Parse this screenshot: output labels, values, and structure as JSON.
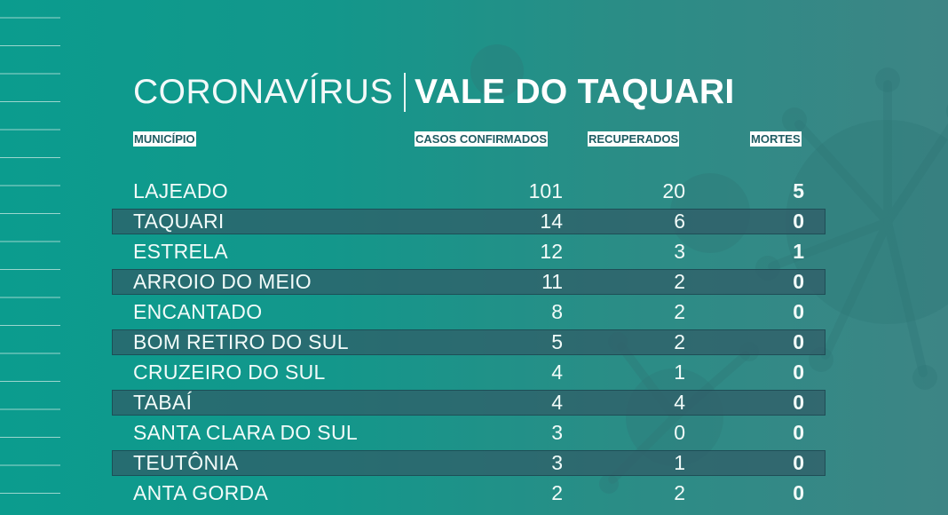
{
  "title": {
    "part1": "CORONAVÍRUS",
    "part2": "VALE DO TAQUARI"
  },
  "headers": {
    "municipio": "MUNICÍPIO",
    "casos": "CASOS CONFIRMADOS",
    "recuperados": "RECUPERADOS",
    "mortes": "MORTES"
  },
  "rows": [
    {
      "municipio": "LAJEADO",
      "casos": "101",
      "recuperados": "20",
      "mortes": "5"
    },
    {
      "municipio": "TAQUARI",
      "casos": "14",
      "recuperados": "6",
      "mortes": "0"
    },
    {
      "municipio": "ESTRELA",
      "casos": "12",
      "recuperados": "3",
      "mortes": "1"
    },
    {
      "municipio": "ARROIO DO MEIO",
      "casos": "11",
      "recuperados": "2",
      "mortes": "0"
    },
    {
      "municipio": "ENCANTADO",
      "casos": "8",
      "recuperados": "2",
      "mortes": "0"
    },
    {
      "municipio": "BOM RETIRO DO SUL",
      "casos": "5",
      "recuperados": "2",
      "mortes": "0"
    },
    {
      "municipio": "CRUZEIRO DO SUL",
      "casos": "4",
      "recuperados": "1",
      "mortes": "0"
    },
    {
      "municipio": "TABAÍ",
      "casos": "4",
      "recuperados": "4",
      "mortes": "0"
    },
    {
      "municipio": "SANTA CLARA DO SUL",
      "casos": "3",
      "recuperados": "0",
      "mortes": "0"
    },
    {
      "municipio": "TEUTÔNIA",
      "casos": "3",
      "recuperados": "1",
      "mortes": "0"
    },
    {
      "municipio": "ANTA GORDA",
      "casos": "2",
      "recuperados": "2",
      "mortes": "0"
    }
  ],
  "colors": {
    "background_left": "#0b9c8e",
    "background_right": "#3d8585",
    "band": "#305c66",
    "header_text": "#1f5d63",
    "text": "#f2fbf9"
  },
  "background_art": "coronavirus-illustration"
}
